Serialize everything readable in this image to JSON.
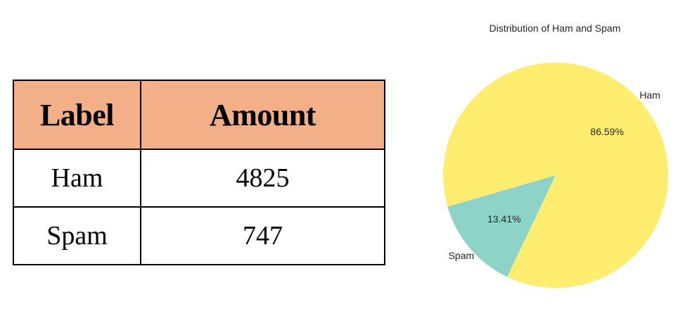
{
  "table": {
    "headers": [
      "Label",
      "Amount"
    ],
    "header_bg": "#F3B088",
    "rows": [
      {
        "label": "Ham",
        "amount": "4825"
      },
      {
        "label": "Spam",
        "amount": "747"
      }
    ]
  },
  "chart_data": {
    "type": "pie",
    "title": "Distribution of Ham and Spam",
    "categories": [
      "Ham",
      "Spam"
    ],
    "values": [
      86.59,
      13.41
    ],
    "pct_labels": [
      "86.59%",
      "13.41%"
    ],
    "colors": [
      "#FFED6F",
      "#8DD3C7"
    ],
    "legend": "none"
  }
}
